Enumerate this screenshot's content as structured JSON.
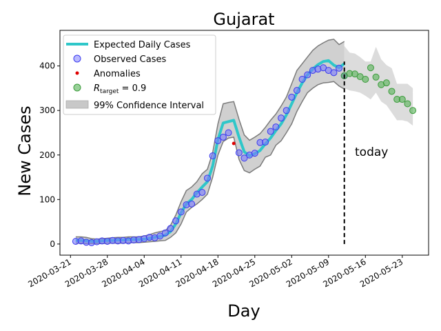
{
  "chart_data": {
    "type": "line",
    "title": "Gujarat",
    "xlabel": "Day",
    "ylabel": "New Cases",
    "x_tick_labels": [
      "2020-03-21",
      "2020-03-28",
      "2020-04-04",
      "2020-04-11",
      "2020-04-18",
      "2020-04-25",
      "2020-05-02",
      "2020-05-09",
      "2020-05-16",
      "2020-05-23"
    ],
    "y_ticks": [
      0,
      100,
      200,
      300,
      400
    ],
    "xlim": [
      "2020-03-19",
      "2020-05-28"
    ],
    "ylim": [
      -25,
      480
    ],
    "legend_position": "top-left",
    "grid": false,
    "annotation": {
      "text": "today",
      "date": "2020-05-14",
      "y": 207
    },
    "today_line": {
      "date": "2020-05-12",
      "y_range": [
        0,
        410
      ]
    },
    "legend": [
      {
        "label": "Expected Daily Cases",
        "color": "#2ec7c9",
        "marker": "line"
      },
      {
        "label": "Observed Cases",
        "color": "#6a6aff",
        "marker": "circle"
      },
      {
        "label": "Anomalies",
        "color": "#e00000",
        "marker": "dot"
      },
      {
        "label": "R_target = 0.9",
        "label_main": "R",
        "label_sub": "target",
        "label_rest": " = 0.9",
        "color": "#55b355",
        "marker": "circle"
      },
      {
        "label": "99% Confidence Interval",
        "color": "#c8c8c8",
        "marker": "patch"
      }
    ],
    "series": [
      {
        "name": "Observed Cases",
        "dates": [
          "2020-03-22",
          "2020-03-23",
          "2020-03-24",
          "2020-03-25",
          "2020-03-26",
          "2020-03-27",
          "2020-03-28",
          "2020-03-29",
          "2020-03-30",
          "2020-03-31",
          "2020-04-01",
          "2020-04-02",
          "2020-04-03",
          "2020-04-04",
          "2020-04-05",
          "2020-04-06",
          "2020-04-07",
          "2020-04-08",
          "2020-04-09",
          "2020-04-10",
          "2020-04-11",
          "2020-04-12",
          "2020-04-13",
          "2020-04-14",
          "2020-04-15",
          "2020-04-16",
          "2020-04-17",
          "2020-04-18",
          "2020-04-19",
          "2020-04-20",
          "2020-04-22",
          "2020-04-23",
          "2020-04-24",
          "2020-04-25",
          "2020-04-26",
          "2020-04-27",
          "2020-04-28",
          "2020-04-29",
          "2020-04-30",
          "2020-05-01",
          "2020-05-02",
          "2020-05-03",
          "2020-05-04",
          "2020-05-05",
          "2020-05-06",
          "2020-05-07",
          "2020-05-08",
          "2020-05-09",
          "2020-05-10",
          "2020-05-11",
          "2020-05-12"
        ],
        "values": [
          6,
          7,
          4,
          3,
          5,
          7,
          6,
          8,
          7,
          8,
          7,
          9,
          10,
          12,
          15,
          14,
          18,
          25,
          35,
          52,
          72,
          88,
          90,
          112,
          116,
          148,
          198,
          232,
          240,
          250,
          205,
          193,
          200,
          204,
          228,
          229,
          253,
          263,
          283,
          300,
          330,
          345,
          370,
          380,
          390,
          393,
          396,
          390,
          385,
          395,
          378
        ]
      },
      {
        "name": "Anomalies",
        "dates": [
          "2020-04-21"
        ],
        "values": [
          226
        ]
      },
      {
        "name": "Expected Daily Cases",
        "dates": [
          "2020-03-22",
          "2020-03-23",
          "2020-03-24",
          "2020-03-25",
          "2020-03-26",
          "2020-03-27",
          "2020-03-28",
          "2020-03-29",
          "2020-03-30",
          "2020-03-31",
          "2020-04-01",
          "2020-04-02",
          "2020-04-03",
          "2020-04-04",
          "2020-04-05",
          "2020-04-06",
          "2020-04-07",
          "2020-04-08",
          "2020-04-09",
          "2020-04-10",
          "2020-04-11",
          "2020-04-12",
          "2020-04-13",
          "2020-04-14",
          "2020-04-15",
          "2020-04-16",
          "2020-04-17",
          "2020-04-18",
          "2020-04-19",
          "2020-04-20",
          "2020-04-21",
          "2020-04-22",
          "2020-04-23",
          "2020-04-24",
          "2020-04-25",
          "2020-04-26",
          "2020-04-27",
          "2020-04-28",
          "2020-04-29",
          "2020-04-30",
          "2020-05-01",
          "2020-05-02",
          "2020-05-03",
          "2020-05-04",
          "2020-05-05",
          "2020-05-06",
          "2020-05-07",
          "2020-05-08",
          "2020-05-09",
          "2020-05-10",
          "2020-05-11",
          "2020-05-12"
        ],
        "values": [
          8,
          8,
          7,
          6,
          6,
          7,
          8,
          8,
          9,
          9,
          10,
          10,
          10,
          11,
          13,
          15,
          17,
          20,
          28,
          45,
          70,
          90,
          100,
          115,
          128,
          140,
          175,
          235,
          272,
          275,
          278,
          240,
          207,
          198,
          203,
          210,
          225,
          238,
          255,
          270,
          290,
          315,
          340,
          362,
          380,
          393,
          403,
          410,
          412,
          402,
          396,
          405
        ]
      },
      {
        "name": "99% Confidence Interval",
        "dates": [
          "2020-03-22",
          "2020-03-23",
          "2020-03-24",
          "2020-03-25",
          "2020-03-26",
          "2020-03-27",
          "2020-03-28",
          "2020-03-29",
          "2020-03-30",
          "2020-03-31",
          "2020-04-01",
          "2020-04-02",
          "2020-04-03",
          "2020-04-04",
          "2020-04-05",
          "2020-04-06",
          "2020-04-07",
          "2020-04-08",
          "2020-04-09",
          "2020-04-10",
          "2020-04-11",
          "2020-04-12",
          "2020-04-13",
          "2020-04-14",
          "2020-04-15",
          "2020-04-16",
          "2020-04-17",
          "2020-04-18",
          "2020-04-19",
          "2020-04-20",
          "2020-04-21",
          "2020-04-22",
          "2020-04-23",
          "2020-04-24",
          "2020-04-25",
          "2020-04-26",
          "2020-04-27",
          "2020-04-28",
          "2020-04-29",
          "2020-04-30",
          "2020-05-01",
          "2020-05-02",
          "2020-05-03",
          "2020-05-04",
          "2020-05-05",
          "2020-05-06",
          "2020-05-07",
          "2020-05-08",
          "2020-05-09",
          "2020-05-10",
          "2020-05-11",
          "2020-05-12"
        ],
        "lower": [
          2,
          2,
          1,
          1,
          1,
          1,
          2,
          2,
          2,
          2,
          3,
          3,
          3,
          4,
          5,
          6,
          7,
          8,
          15,
          25,
          45,
          72,
          82,
          90,
          100,
          112,
          150,
          200,
          230,
          238,
          240,
          190,
          165,
          160,
          168,
          175,
          195,
          200,
          222,
          232,
          250,
          270,
          298,
          320,
          340,
          350,
          358,
          362,
          363,
          365,
          355,
          348
        ],
        "upper": [
          16,
          16,
          15,
          12,
          11,
          12,
          13,
          14,
          15,
          15,
          16,
          16,
          16,
          18,
          21,
          25,
          28,
          30,
          42,
          65,
          95,
          120,
          128,
          140,
          158,
          168,
          205,
          270,
          315,
          318,
          320,
          280,
          245,
          233,
          240,
          248,
          262,
          278,
          292,
          310,
          330,
          360,
          390,
          405,
          420,
          435,
          445,
          452,
          458,
          460,
          448,
          455
        ]
      },
      {
        "name": "R_target = 0.9",
        "dates": [
          "2020-05-12",
          "2020-05-13",
          "2020-05-14",
          "2020-05-15",
          "2020-05-16",
          "2020-05-17",
          "2020-05-18",
          "2020-05-19",
          "2020-05-20",
          "2020-05-21",
          "2020-05-22",
          "2020-05-23",
          "2020-05-24",
          "2020-05-25"
        ],
        "values": [
          378,
          383,
          382,
          376,
          370,
          396,
          375,
          358,
          362,
          343,
          325,
          325,
          315,
          300
        ]
      },
      {
        "name": "R_target = 0.9 band",
        "dates": [
          "2020-05-12",
          "2020-05-13",
          "2020-05-14",
          "2020-05-15",
          "2020-05-16",
          "2020-05-17",
          "2020-05-18",
          "2020-05-19",
          "2020-05-20",
          "2020-05-21",
          "2020-05-22",
          "2020-05-23",
          "2020-05-24",
          "2020-05-25"
        ],
        "lower": [
          350,
          345,
          343,
          340,
          333,
          325,
          340,
          320,
          312,
          295,
          278,
          278,
          275,
          266
        ],
        "upper": [
          445,
          430,
          428,
          420,
          410,
          410,
          443,
          415,
          402,
          395,
          360,
          360,
          360,
          350
        ]
      }
    ]
  }
}
